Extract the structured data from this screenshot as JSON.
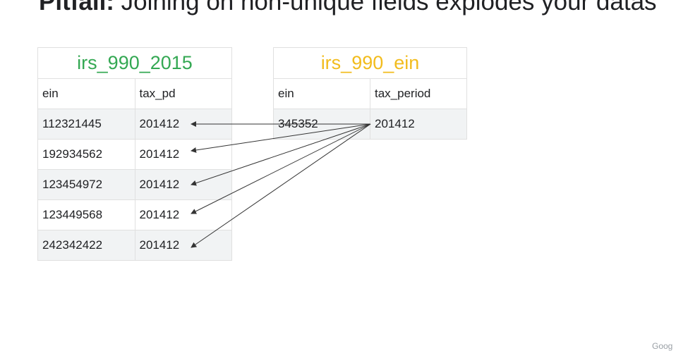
{
  "title": {
    "bold": "Pitfall:",
    "rest": " Joining on non-unique fields explodes your datas"
  },
  "table_left": {
    "name": "irs_990_2015",
    "color": "#34a853",
    "columns": [
      "ein",
      "tax_pd"
    ],
    "rows": [
      [
        "112321445",
        "201412"
      ],
      [
        "192934562",
        "201412"
      ],
      [
        "123454972",
        "201412"
      ],
      [
        "123449568",
        "201412"
      ],
      [
        "242342422",
        "201412"
      ]
    ]
  },
  "table_right": {
    "name": "irs_990_ein",
    "color": "#f2bc1d",
    "columns": [
      "ein",
      "tax_period"
    ],
    "rows": [
      [
        "345352",
        "201412"
      ]
    ]
  },
  "watermark": "Goog"
}
